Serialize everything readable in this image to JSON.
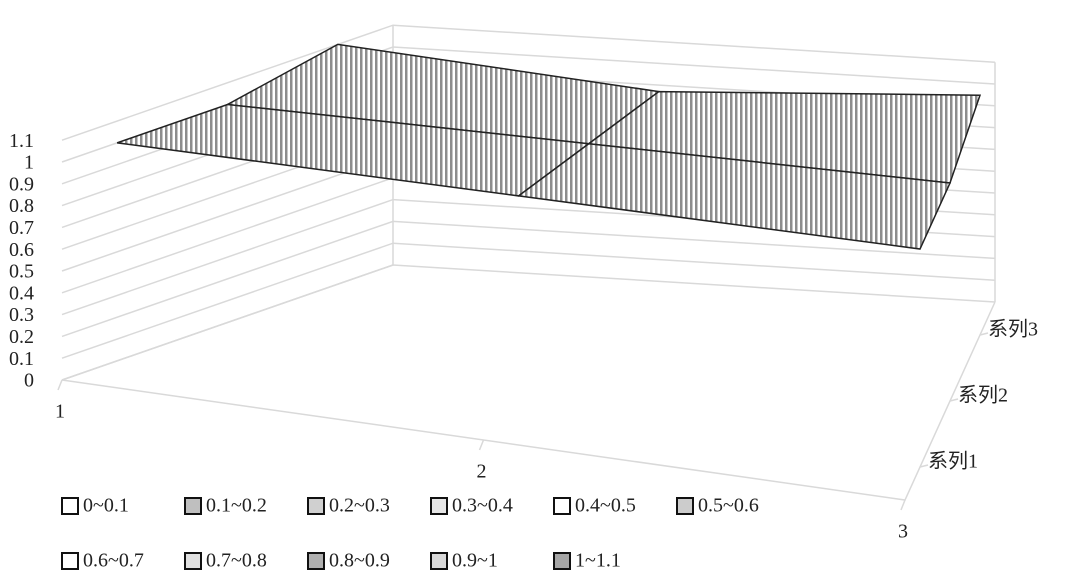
{
  "chart_data": {
    "type": "surface",
    "categories": [
      "1",
      "2",
      "3"
    ],
    "series": [
      {
        "name": "系列1",
        "values": [
          1,
          1,
          1
        ]
      },
      {
        "name": "系列2",
        "values": [
          1,
          1,
          1
        ]
      },
      {
        "name": "系列3",
        "values": [
          1.1,
          1,
          1.1
        ]
      }
    ],
    "zlim": [
      0,
      1.1
    ],
    "zticks": [
      0,
      0.1,
      0.2,
      0.3,
      0.4,
      0.5,
      0.6,
      0.7,
      0.8,
      0.9,
      1,
      1.1
    ],
    "legend": [
      "0~0.1",
      "0.1~0.2",
      "0.2~0.3",
      "0.3~0.4",
      "0.4~0.5",
      "0.5~0.6",
      "0.6~0.7",
      "0.7~0.8",
      "0.8~0.9",
      "0.9~1",
      "1~1.1"
    ],
    "color": "#a6a6a6",
    "grid": true
  }
}
